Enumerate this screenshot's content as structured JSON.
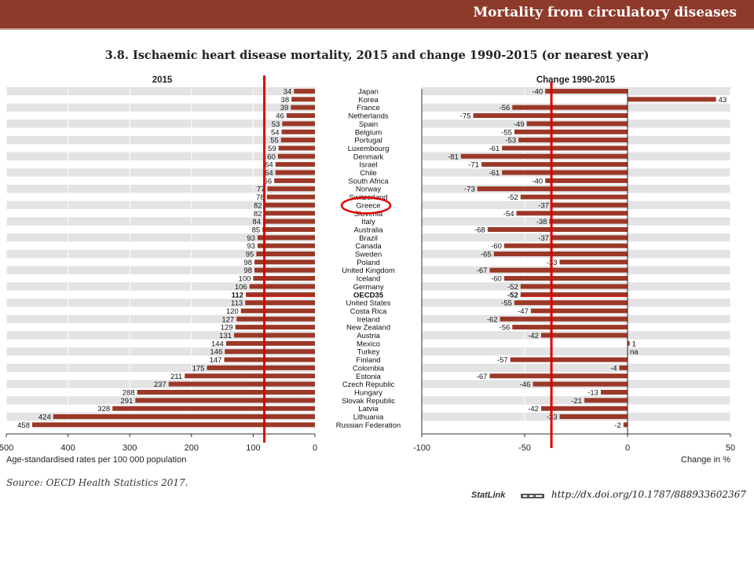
{
  "header": {
    "section_title": "Mortality from circulatory diseases"
  },
  "colors": {
    "bar": "#9b3828",
    "banner": "#8e3a2b",
    "stripe": "#e3e3e3",
    "annotation": "#e00000"
  },
  "source": "Source: OECD Health Statistics 2017.",
  "statlink": {
    "label": "StatLink",
    "url": "http://dx.doi.org/10.1787/888933602367"
  },
  "chart_data": {
    "type": "bar",
    "title": "3.8. Ischaemic heart disease mortality, 2015 and change 1990-2015 (or nearest year)",
    "categories": [
      "Japan",
      "Korea",
      "France",
      "Netherlands",
      "Spain",
      "Belgium",
      "Portugal",
      "Luxembourg",
      "Denmark",
      "Israel",
      "Chile",
      "South Africa",
      "Norway",
      "Switzerland",
      "Greece",
      "Slovenia",
      "Italy",
      "Australia",
      "Brazil",
      "Canada",
      "Sweden",
      "Poland",
      "United Kingdom",
      "Iceland",
      "Germany",
      "OECD35",
      "United States",
      "Costa Rica",
      "Ireland",
      "New Zealand",
      "Austria",
      "Mexico",
      "Turkey",
      "Finland",
      "Colombia",
      "Estonia",
      "Czech Republic",
      "Hungary",
      "Slovak Republic",
      "Latvia",
      "Lithuania",
      "Russian Federation"
    ],
    "highlight_category": "OECD35",
    "panels": [
      {
        "title": "2015",
        "xlabel": "Age-standardised rates per 100 000 population",
        "xlim": [
          500,
          0
        ],
        "ticks": [
          "500",
          "400",
          "300",
          "200",
          "100",
          "0"
        ],
        "values": [
          34,
          38,
          39,
          46,
          53,
          54,
          55,
          59,
          60,
          64,
          64,
          66,
          77,
          78,
          82,
          82,
          84,
          85,
          93,
          93,
          95,
          98,
          98,
          100,
          106,
          112,
          113,
          120,
          127,
          129,
          131,
          144,
          146,
          147,
          175,
          211,
          237,
          288,
          291,
          328,
          424,
          458
        ],
        "data_labels": [
          "34",
          "38",
          "39",
          "46",
          "53",
          "54",
          "55",
          "59",
          "60",
          "64",
          "64",
          "66",
          "77",
          "78",
          "82",
          "82",
          "84",
          "85",
          "93",
          "93",
          "95",
          "98",
          "98",
          "100",
          "106",
          "112",
          "113",
          "120",
          "127",
          "129",
          "131",
          "144",
          "146",
          "147",
          "175",
          "211",
          "237",
          "288",
          "291",
          "328",
          "424",
          "458"
        ]
      },
      {
        "title": "Change 1990-2015",
        "xlabel": "Change in %",
        "xlim": [
          -100,
          50
        ],
        "ticks": [
          "-100",
          "-50",
          "0",
          "50"
        ],
        "values": [
          -40,
          43,
          -56,
          -75,
          -49,
          -55,
          -53,
          -61,
          -81,
          -71,
          -61,
          -40,
          -73,
          -52,
          -37,
          -54,
          -38,
          -68,
          -37,
          -60,
          -65,
          -33,
          -67,
          -60,
          -52,
          -52,
          -55,
          -47,
          -62,
          -56,
          -42,
          1,
          null,
          -57,
          -4,
          -67,
          -46,
          -13,
          -21,
          -42,
          -33,
          -2
        ],
        "data_labels": [
          "-40",
          "43",
          "-56",
          "-75",
          "-49",
          "-55",
          "-53",
          "-61",
          "-81",
          "-71",
          "-61",
          "-40",
          "-73",
          "-52",
          "-37",
          "-54",
          "-38",
          "-68",
          "-37",
          "-60",
          "-65",
          "-33",
          "-67",
          "-60",
          "-52",
          "-52",
          "-55",
          "-47",
          "-62",
          "-56",
          "-42",
          "1",
          "na",
          "-57",
          "-4",
          "-67",
          "-46",
          "-13",
          "-21",
          "-42",
          "-33",
          "-2"
        ]
      }
    ],
    "annotations": {
      "circled_category": "Greece",
      "reference_line_left_value": 82,
      "reference_line_right_value": -37
    }
  }
}
